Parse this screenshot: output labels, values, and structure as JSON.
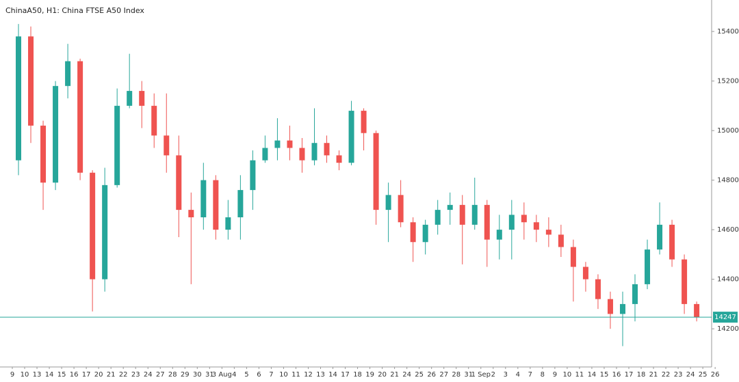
{
  "chart_data": {
    "type": "candlestick",
    "title": "ChinaA50, H1: China FTSE A50 Index",
    "categories": [
      "9",
      "10",
      "13",
      "14",
      "15",
      "16",
      "17",
      "20",
      "21",
      "22",
      "23",
      "24",
      "27",
      "28",
      "29",
      "30",
      "31",
      "3 Aug",
      "4",
      "5",
      "6",
      "7",
      "10",
      "11",
      "12",
      "13",
      "14",
      "17",
      "18",
      "19",
      "20",
      "21",
      "24",
      "25",
      "26",
      "27",
      "28",
      "31",
      "1 Sep",
      "2",
      "3",
      "4",
      "7",
      "8",
      "9",
      "10",
      "11",
      "14",
      "15",
      "16",
      "17",
      "18",
      "21",
      "22",
      "23",
      "24",
      "25",
      "26"
    ],
    "open": [
      14880,
      15380,
      15020,
      14790,
      15180,
      15280,
      14830,
      14400,
      14780,
      15100,
      15160,
      15100,
      14980,
      14900,
      14680,
      14650,
      14800,
      14600,
      14650,
      14760,
      14880,
      14930,
      14960,
      14930,
      14880,
      14950,
      14900,
      14870,
      15080,
      14990,
      14680,
      14740,
      14630,
      14550,
      14620,
      14680,
      14700,
      14620,
      14700,
      14560,
      14600,
      14660,
      14630,
      14600,
      14580,
      14530,
      14450,
      14400,
      14320,
      14260,
      14300,
      14380,
      14520,
      14620,
      14480,
      14300,
      null,
      null
    ],
    "high": [
      15430,
      15420,
      15040,
      15200,
      15350,
      15290,
      14840,
      14850,
      15170,
      15310,
      15200,
      15150,
      15150,
      14980,
      14750,
      14870,
      14820,
      14720,
      14820,
      14920,
      14980,
      15050,
      15020,
      14970,
      15090,
      14980,
      14920,
      15120,
      15090,
      15000,
      14790,
      14800,
      14650,
      14640,
      14720,
      14750,
      14740,
      14810,
      14720,
      14660,
      14720,
      14710,
      14660,
      14650,
      14620,
      14560,
      14470,
      14420,
      14350,
      14350,
      14420,
      14560,
      14710,
      14640,
      14500,
      14310,
      null,
      null
    ],
    "low": [
      14820,
      14950,
      14680,
      14760,
      15130,
      14800,
      14270,
      14350,
      14770,
      15090,
      15010,
      14930,
      14830,
      14570,
      14380,
      14600,
      14560,
      14560,
      14560,
      14680,
      14870,
      14880,
      14880,
      14830,
      14860,
      14870,
      14840,
      14860,
      14920,
      14620,
      14550,
      14610,
      14470,
      14500,
      14580,
      14620,
      14460,
      14600,
      14450,
      14480,
      14480,
      14560,
      14550,
      14530,
      14490,
      14310,
      14350,
      14280,
      14200,
      14130,
      14230,
      14360,
      14500,
      14450,
      14260,
      14230,
      null,
      null
    ],
    "close": [
      15380,
      15020,
      14790,
      15180,
      15280,
      14830,
      14400,
      14780,
      15100,
      15160,
      15100,
      14980,
      14900,
      14680,
      14650,
      14800,
      14600,
      14650,
      14760,
      14880,
      14930,
      14960,
      14930,
      14880,
      14950,
      14900,
      14870,
      15080,
      14990,
      14680,
      14740,
      14630,
      14550,
      14620,
      14680,
      14700,
      14620,
      14700,
      14560,
      14600,
      14660,
      14630,
      14600,
      14580,
      14530,
      14450,
      14400,
      14320,
      14260,
      14300,
      14380,
      14520,
      14620,
      14480,
      14300,
      14247,
      null,
      null
    ],
    "up_color": "#26a69a",
    "down_color": "#ef5350",
    "last_price": 14247,
    "last_price_color": "#26a69a",
    "ylim": [
      14046,
      15527
    ],
    "yticks": [
      14200,
      14400,
      14600,
      14800,
      15000,
      15200,
      15400
    ]
  }
}
